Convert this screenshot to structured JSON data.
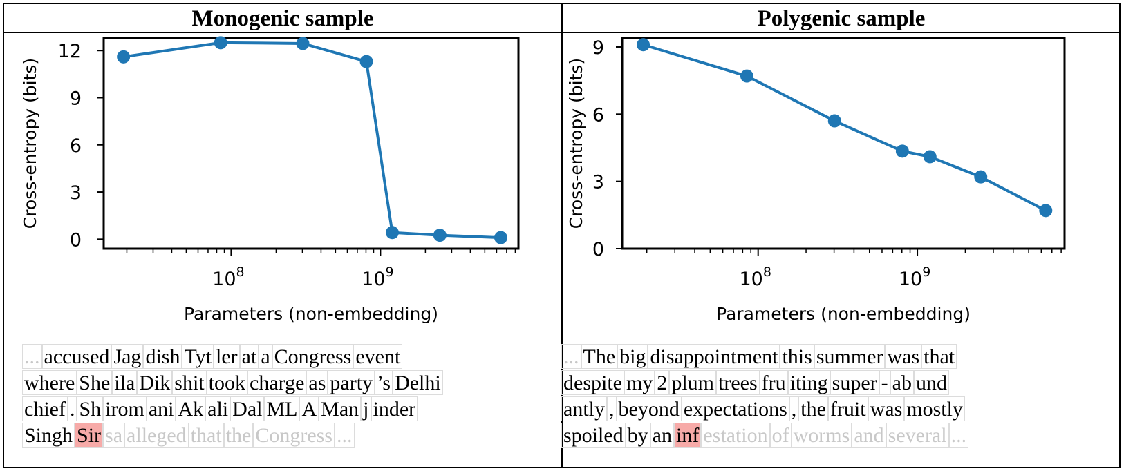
{
  "panels": [
    {
      "title": "Monogenic sample",
      "tokens": [
        [
          "...",
          " accused",
          " Jag",
          "dish",
          " Tyt",
          "ler",
          " at",
          " a",
          " Congress",
          " event"
        ],
        [
          " where",
          " She",
          "ila",
          " Dik",
          "shit",
          " took",
          " charge",
          " as",
          " party",
          "’s",
          " Delhi"
        ],
        [
          " chief",
          ".",
          "Sh",
          "irom",
          "ani",
          " Ak",
          "ali",
          " Dal",
          " ML",
          "A",
          " Man",
          "j",
          "inder"
        ],
        [
          " Singh",
          " Sir",
          "sa",
          " alleged",
          " that",
          " the",
          " Congress",
          "..."
        ]
      ],
      "highlight": {
        "row": 3,
        "index": 1
      },
      "fade_from": {
        "row": 3,
        "index": 2
      },
      "lead_faded": true
    },
    {
      "title": "Polygenic sample",
      "tokens": [
        [
          "...",
          "The",
          " big",
          " disappointment",
          " this",
          " summer",
          " was",
          " that"
        ],
        [
          " despite",
          " my",
          " 2",
          " plum",
          " trees",
          " fru",
          "iting",
          " super",
          "-",
          "ab",
          "und"
        ],
        [
          "antly",
          ",",
          " beyond",
          " expectations",
          ",",
          " the",
          " fruit",
          " was",
          " mostly"
        ],
        [
          " spoiled",
          " by",
          " an",
          " inf",
          "estation",
          " of",
          " worms",
          " and",
          " several",
          "..."
        ]
      ],
      "highlight": {
        "row": 3,
        "index": 3
      },
      "fade_from": {
        "row": 3,
        "index": 4
      },
      "lead_faded": true
    }
  ],
  "chart_data": [
    {
      "type": "line",
      "title": "Monogenic sample",
      "xlabel": "Parameters (non-embedding)",
      "ylabel": "Cross-entropy (bits)",
      "xscale": "log",
      "xlim": [
        14000000,
        8400000000
      ],
      "ylim": [
        -0.6,
        12.8
      ],
      "yticks": [
        0,
        3,
        6,
        9,
        12
      ],
      "xticks": [
        {
          "value": 100000000,
          "label_base": "10",
          "label_exp": "8"
        },
        {
          "value": 1000000000,
          "label_base": "10",
          "label_exp": "9"
        }
      ],
      "color": "#1f77b4",
      "series": [
        {
          "x": [
            19000000,
            85000000,
            302000000,
            805000000,
            1200000000,
            2500000000,
            6400000000
          ],
          "y": [
            11.6,
            12.5,
            12.45,
            11.3,
            0.42,
            0.25,
            0.1
          ]
        }
      ]
    },
    {
      "type": "line",
      "title": "Polygenic sample",
      "xlabel": "Parameters (non-embedding)",
      "ylabel": "Cross-entropy (bits)",
      "xscale": "log",
      "xlim": [
        14000000,
        8400000000
      ],
      "ylim": [
        0,
        9.4
      ],
      "yticks": [
        0,
        3,
        6,
        9
      ],
      "xticks": [
        {
          "value": 100000000,
          "label_base": "10",
          "label_exp": "8"
        },
        {
          "value": 1000000000,
          "label_base": "10",
          "label_exp": "9"
        }
      ],
      "color": "#1f77b4",
      "series": [
        {
          "x": [
            19000000,
            85000000,
            302000000,
            805000000,
            1200000000,
            2500000000,
            6400000000
          ],
          "y": [
            9.1,
            7.7,
            5.7,
            4.35,
            4.1,
            3.2,
            1.7
          ]
        }
      ]
    }
  ]
}
